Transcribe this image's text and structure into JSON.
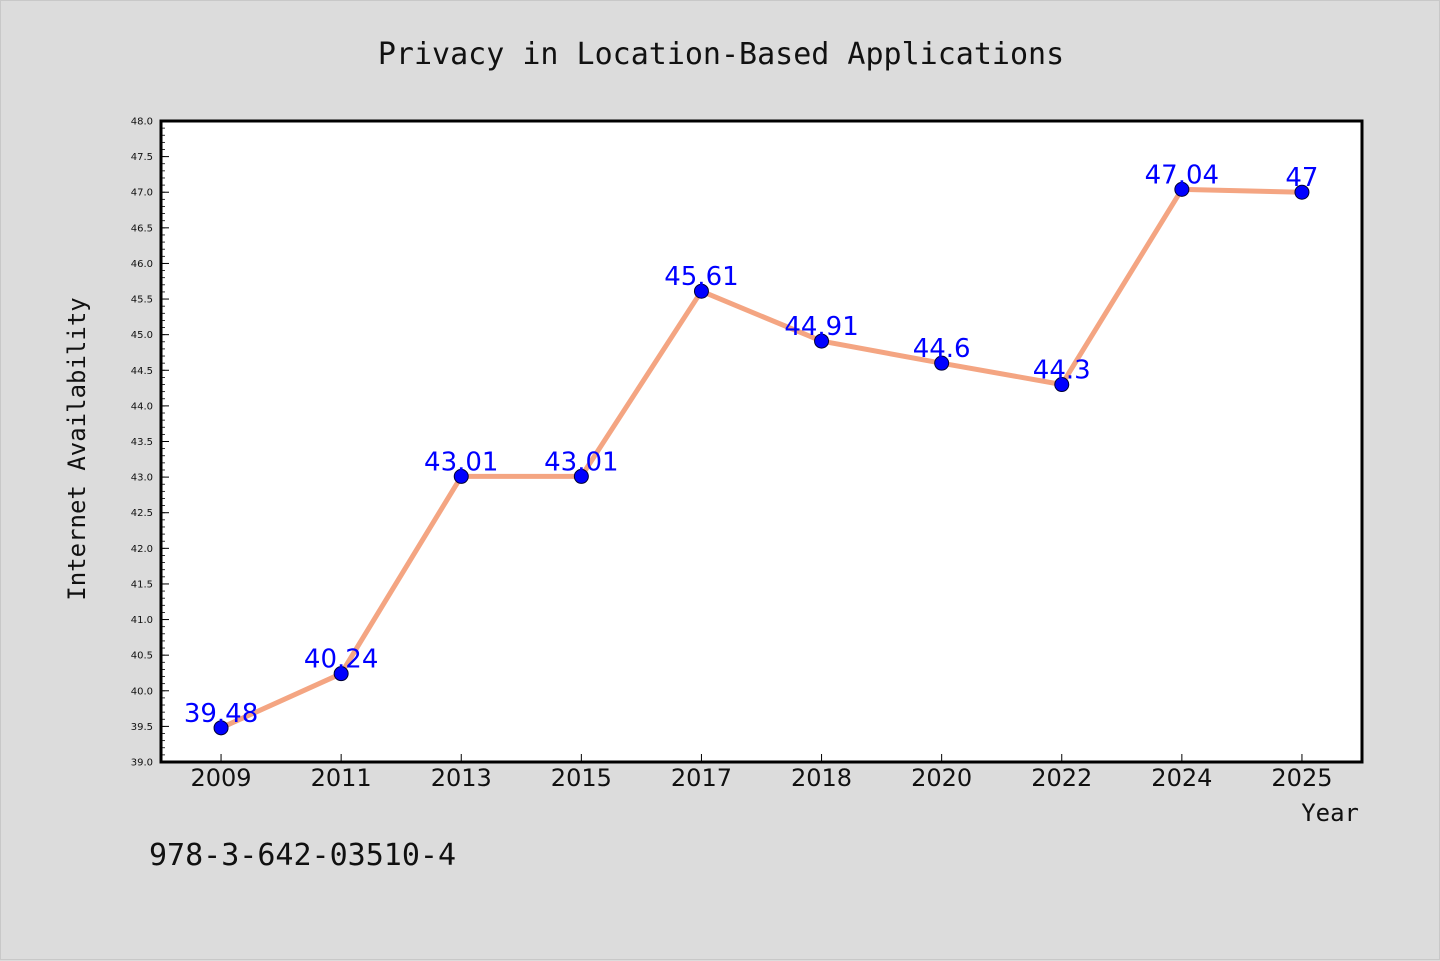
{
  "chart_data": {
    "type": "line",
    "title": "Privacy in Location-Based Applications",
    "xlabel": "Year",
    "ylabel": "Internet Availability",
    "categories": [
      "2009",
      "2011",
      "2013",
      "2015",
      "2017",
      "2018",
      "2020",
      "2022",
      "2024",
      "2025"
    ],
    "series": [
      {
        "values": [
          39.48,
          40.24,
          43.01,
          43.01,
          45.61,
          44.91,
          44.6,
          44.3,
          47.04,
          47
        ]
      }
    ],
    "data_labels": [
      "39.48",
      "40.24",
      "43.01",
      "43.01",
      "45.61",
      "44.91",
      "44.6",
      "44.3",
      "47.04",
      "47"
    ],
    "ylim": [
      39.0,
      48.0
    ],
    "yticks": [
      "39.0",
      "39.5",
      "40.0",
      "40.5",
      "41.0",
      "41.5",
      "42.0",
      "42.5",
      "43.0",
      "43.5",
      "44.0",
      "44.5",
      "45.0",
      "45.5",
      "46.0",
      "46.5",
      "47.0",
      "47.5",
      "48.0"
    ],
    "grid": false,
    "legend": "none",
    "colors": {
      "line": "#f4a582",
      "marker": "#0000ff",
      "label": "#0000ff",
      "plot_background": "#ffffff",
      "figure_background": "#dcdcdc"
    }
  },
  "footnote": "978-3-642-03510-4"
}
